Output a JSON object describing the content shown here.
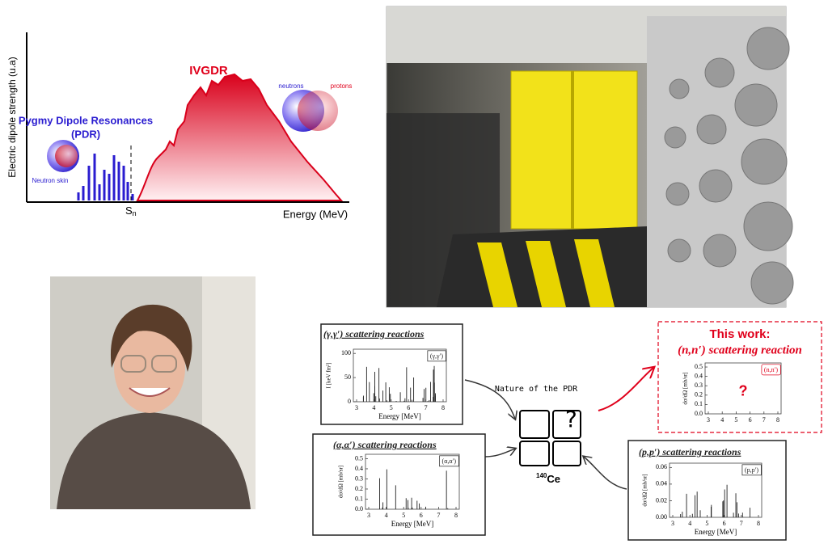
{
  "pdr_figure": {
    "y_axis_label": "Electric dipole strength (u.a)",
    "x_axis_label": "Energy (MeV)",
    "gdr_label": "IVGDR",
    "pdr_label_line1": "Pygmy Dipole Resonances",
    "pdr_label_line2": "(PDR)",
    "skin_label": "Neutron skin",
    "neutrons_label": "neutrons",
    "protons_label": "protons",
    "threshold_label": {
      "main": "S",
      "sub": "n"
    }
  },
  "reaction_panels": [
    {
      "title": "(γ,γ′) scattering reactions",
      "tag": "(γ,γ′)",
      "y_label": "I [keV fm²]",
      "yticks": [
        "0",
        "50",
        "100"
      ],
      "xticks": [
        "3",
        "4",
        "5",
        "6",
        "7",
        "8"
      ],
      "x_label": "Energy [MeV]"
    },
    {
      "title": "(α,α′) scattering reactions",
      "tag": "(α,α′)",
      "y_label": "dσ/dΩ [mb/sr]",
      "yticks": [
        "0.0",
        "0.1",
        "0.2",
        "0.3",
        "0.4",
        "0.5"
      ],
      "xticks": [
        "3",
        "4",
        "5",
        "6",
        "7",
        "8"
      ],
      "x_label": "Energy [MeV]"
    },
    {
      "title": "(p,p′) scattering reactions",
      "tag": "(p,p′)",
      "y_label": "dσ/dΩ [mb/sr]",
      "yticks": [
        "0.00",
        "0.02",
        "0.04",
        "0.06"
      ],
      "xticks": [
        "3",
        "4",
        "5",
        "6",
        "7",
        "8"
      ],
      "x_label": "Energy [MeV]"
    },
    {
      "heading": "This work:",
      "title": "(n,n′) scattering reaction",
      "tag": "(n,n′)",
      "y_label": "dσ/dΩ [mb/sr]",
      "yticks": [
        "0.0",
        "0.1",
        "0.2",
        "0.3",
        "0.4",
        "0.5"
      ],
      "xticks": [
        "3",
        "4",
        "5",
        "6",
        "7",
        "8"
      ],
      "placeholder": "?"
    }
  ],
  "center": {
    "caption": "Nature of the PDR",
    "nucleus": {
      "mass": "140",
      "symbol": "Ce"
    }
  }
}
